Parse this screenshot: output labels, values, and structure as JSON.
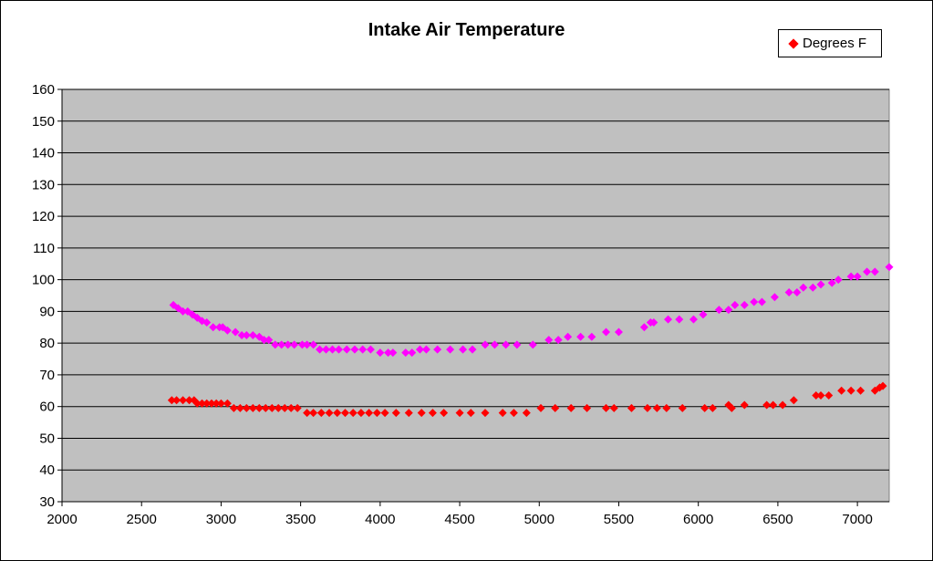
{
  "chart_data": {
    "type": "scatter",
    "title": "Intake Air Temperature",
    "xlabel": "",
    "ylabel": "",
    "xlim": [
      2000,
      7200
    ],
    "ylim": [
      30,
      160
    ],
    "xticks": [
      "2000",
      "2500",
      "3000",
      "3500",
      "4000",
      "4500",
      "5000",
      "5500",
      "6000",
      "6500",
      "7000"
    ],
    "yticks": [
      "30",
      "40",
      "50",
      "60",
      "70",
      "80",
      "90",
      "100",
      "110",
      "120",
      "130",
      "140",
      "150",
      "160"
    ],
    "grid": "horizontal",
    "legend_position": "top-right",
    "plot_background": "#c0c0c0",
    "series": [
      {
        "name": "Degrees F",
        "color": "#ff0000",
        "points": [
          [
            2690,
            62
          ],
          [
            2720,
            62
          ],
          [
            2760,
            62
          ],
          [
            2800,
            62
          ],
          [
            2830,
            62
          ],
          [
            2850,
            61
          ],
          [
            2880,
            61
          ],
          [
            2910,
            61
          ],
          [
            2940,
            61
          ],
          [
            2970,
            61
          ],
          [
            3000,
            61
          ],
          [
            3040,
            61
          ],
          [
            3080,
            59.5
          ],
          [
            3120,
            59.5
          ],
          [
            3160,
            59.5
          ],
          [
            3200,
            59.5
          ],
          [
            3240,
            59.5
          ],
          [
            3280,
            59.5
          ],
          [
            3320,
            59.5
          ],
          [
            3360,
            59.5
          ],
          [
            3400,
            59.5
          ],
          [
            3440,
            59.5
          ],
          [
            3480,
            59.5
          ],
          [
            3540,
            58
          ],
          [
            3580,
            58
          ],
          [
            3630,
            58
          ],
          [
            3680,
            58
          ],
          [
            3730,
            58
          ],
          [
            3780,
            58
          ],
          [
            3830,
            58
          ],
          [
            3880,
            58
          ],
          [
            3930,
            58
          ],
          [
            3980,
            58
          ],
          [
            4030,
            58
          ],
          [
            4100,
            58
          ],
          [
            4180,
            58
          ],
          [
            4260,
            58
          ],
          [
            4330,
            58
          ],
          [
            4400,
            58
          ],
          [
            4500,
            58
          ],
          [
            4570,
            58
          ],
          [
            4660,
            58
          ],
          [
            4770,
            58
          ],
          [
            4840,
            58
          ],
          [
            4920,
            58
          ],
          [
            5010,
            59.5
          ],
          [
            5100,
            59.5
          ],
          [
            5200,
            59.5
          ],
          [
            5300,
            59.5
          ],
          [
            5420,
            59.5
          ],
          [
            5470,
            59.5
          ],
          [
            5580,
            59.5
          ],
          [
            5680,
            59.5
          ],
          [
            5740,
            59.5
          ],
          [
            5800,
            59.5
          ],
          [
            5900,
            59.5
          ],
          [
            6040,
            59.5
          ],
          [
            6090,
            59.5
          ],
          [
            6190,
            60.5
          ],
          [
            6210,
            59.5
          ],
          [
            6290,
            60.5
          ],
          [
            6430,
            60.5
          ],
          [
            6470,
            60.5
          ],
          [
            6530,
            60.5
          ],
          [
            6600,
            62
          ],
          [
            6740,
            63.5
          ],
          [
            6770,
            63.5
          ],
          [
            6820,
            63.5
          ],
          [
            6900,
            65
          ],
          [
            6960,
            65
          ],
          [
            7020,
            65
          ],
          [
            7110,
            65
          ],
          [
            7140,
            66
          ],
          [
            7160,
            66.5
          ]
        ]
      },
      {
        "name": "",
        "color": "#ff00ff",
        "points": [
          [
            2700,
            92
          ],
          [
            2730,
            91
          ],
          [
            2760,
            90
          ],
          [
            2790,
            90
          ],
          [
            2820,
            89
          ],
          [
            2850,
            88
          ],
          [
            2880,
            87
          ],
          [
            2910,
            86.5
          ],
          [
            2950,
            85
          ],
          [
            2990,
            85
          ],
          [
            3010,
            85
          ],
          [
            3040,
            84
          ],
          [
            3090,
            83.5
          ],
          [
            3130,
            82.5
          ],
          [
            3160,
            82.5
          ],
          [
            3200,
            82.5
          ],
          [
            3240,
            82
          ],
          [
            3270,
            81
          ],
          [
            3300,
            81
          ],
          [
            3340,
            79.5
          ],
          [
            3380,
            79.5
          ],
          [
            3420,
            79.5
          ],
          [
            3460,
            79.5
          ],
          [
            3510,
            79.5
          ],
          [
            3540,
            79.5
          ],
          [
            3580,
            79.5
          ],
          [
            3620,
            78
          ],
          [
            3660,
            78
          ],
          [
            3700,
            78
          ],
          [
            3740,
            78
          ],
          [
            3790,
            78
          ],
          [
            3840,
            78
          ],
          [
            3890,
            78
          ],
          [
            3940,
            78
          ],
          [
            4000,
            77
          ],
          [
            4050,
            77
          ],
          [
            4080,
            77
          ],
          [
            4160,
            77
          ],
          [
            4200,
            77
          ],
          [
            4250,
            78
          ],
          [
            4290,
            78
          ],
          [
            4360,
            78
          ],
          [
            4440,
            78
          ],
          [
            4520,
            78
          ],
          [
            4580,
            78
          ],
          [
            4660,
            79.5
          ],
          [
            4720,
            79.5
          ],
          [
            4790,
            79.5
          ],
          [
            4860,
            79.5
          ],
          [
            4960,
            79.5
          ],
          [
            5060,
            81
          ],
          [
            5120,
            81
          ],
          [
            5180,
            82
          ],
          [
            5260,
            82
          ],
          [
            5330,
            82
          ],
          [
            5420,
            83.5
          ],
          [
            5500,
            83.5
          ],
          [
            5660,
            85
          ],
          [
            5700,
            86.5
          ],
          [
            5720,
            86.5
          ],
          [
            5810,
            87.5
          ],
          [
            5880,
            87.5
          ],
          [
            5970,
            87.5
          ],
          [
            6030,
            89
          ],
          [
            6130,
            90.5
          ],
          [
            6190,
            90.5
          ],
          [
            6230,
            92
          ],
          [
            6290,
            92
          ],
          [
            6350,
            93
          ],
          [
            6400,
            93
          ],
          [
            6480,
            94.5
          ],
          [
            6570,
            96
          ],
          [
            6620,
            96
          ],
          [
            6660,
            97.5
          ],
          [
            6720,
            97.5
          ],
          [
            6770,
            98.5
          ],
          [
            6840,
            99
          ],
          [
            6880,
            100
          ],
          [
            6960,
            101
          ],
          [
            7000,
            101
          ],
          [
            7060,
            102.5
          ],
          [
            7110,
            102.5
          ],
          [
            7200,
            104
          ]
        ]
      }
    ]
  }
}
